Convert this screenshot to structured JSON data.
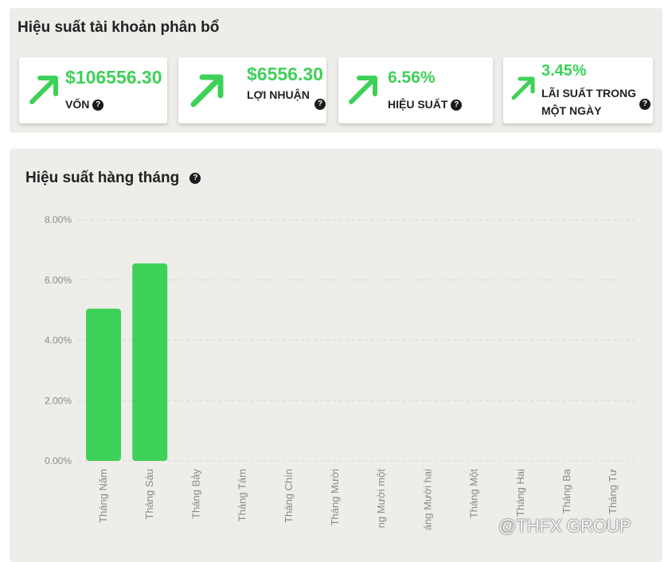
{
  "account_panel": {
    "title": "Hiệu suất tài khoản phân bổ",
    "cards": [
      {
        "value": "$106556.30",
        "label": "VỐN"
      },
      {
        "value": "$6556.30",
        "label": "LỢI NHUẬN"
      },
      {
        "value": "6.56%",
        "label": "HIỆU SUẤT"
      },
      {
        "value": "3.45%",
        "label": "LÃI SUẤT TRONG MỘT NGÀY"
      }
    ],
    "help_glyph": "?"
  },
  "chart_panel": {
    "title": "Hiệu suất hàng tháng",
    "help_glyph": "?"
  },
  "watermark": "@THFX GROUP",
  "colors": {
    "accent_green": "#3ed158",
    "panel_bg": "#efedea"
  },
  "chart_data": {
    "type": "bar",
    "categories": [
      "Tháng Năm",
      "Tháng Sáu",
      "Tháng Bảy",
      "Tháng Tám",
      "Tháng Chín",
      "Tháng Mười",
      "ng Mười một",
      "áng Mười hai",
      "Tháng Một",
      "Tháng Hai",
      "Tháng Ba",
      "Tháng Tư"
    ],
    "values": [
      5.05,
      6.55,
      0,
      0,
      0,
      0,
      0,
      0,
      0,
      0,
      0,
      0
    ],
    "y_ticks": [
      "0.00%",
      "2.00%",
      "4.00%",
      "6.00%",
      "8.00%"
    ],
    "ylim": [
      0,
      8
    ],
    "grid": true,
    "bar_color": "#3ed158"
  }
}
